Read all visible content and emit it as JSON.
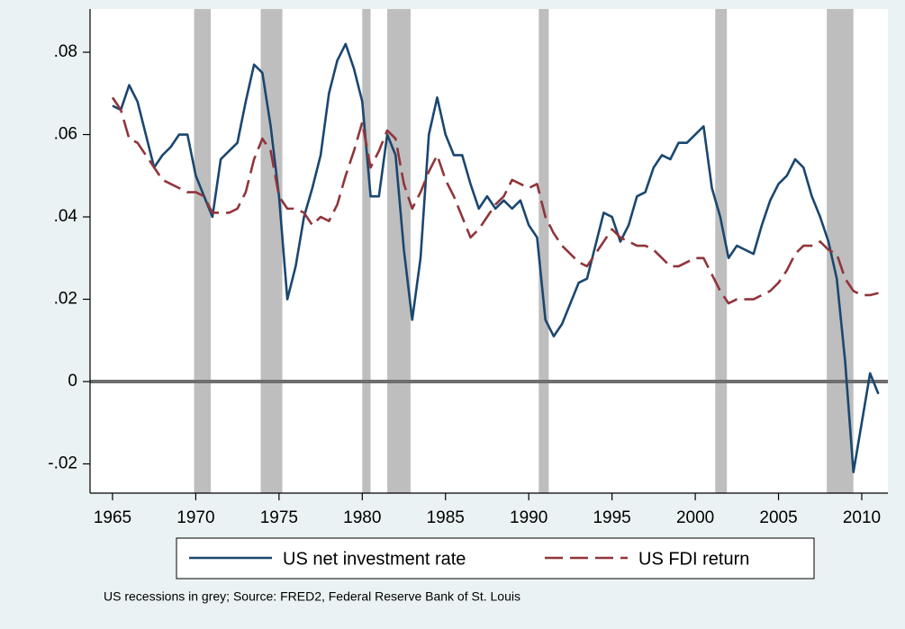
{
  "chart_data": {
    "type": "line",
    "note": "US recessions in grey; Source: FRED2, Federal Reserve Bank of St. Louis",
    "x": [
      1965,
      1965.5,
      1966,
      1966.5,
      1967,
      1967.5,
      1968,
      1968.5,
      1969,
      1969.5,
      1970,
      1970.5,
      1971,
      1971.5,
      1972,
      1972.5,
      1973,
      1973.5,
      1974,
      1974.5,
      1975,
      1975.5,
      1976,
      1976.5,
      1977,
      1977.5,
      1978,
      1978.5,
      1979,
      1979.5,
      1980,
      1980.5,
      1981,
      1981.5,
      1982,
      1982.5,
      1983,
      1983.5,
      1984,
      1984.5,
      1985,
      1985.5,
      1986,
      1986.5,
      1987,
      1987.5,
      1988,
      1988.5,
      1989,
      1989.5,
      1990,
      1990.5,
      1991,
      1991.5,
      1992,
      1992.5,
      1993,
      1993.5,
      1994,
      1994.5,
      1995,
      1995.5,
      1996,
      1996.5,
      1997,
      1997.5,
      1998,
      1998.5,
      1999,
      1999.5,
      2000,
      2000.5,
      2001,
      2001.5,
      2002,
      2002.5,
      2003,
      2003.5,
      2004,
      2004.5,
      2005,
      2005.5,
      2006,
      2006.5,
      2007,
      2007.5,
      2008,
      2008.5,
      2009,
      2009.5,
      2010,
      2010.5,
      2011
    ],
    "series": [
      {
        "name": "US net investment rate",
        "color": "#1a476f",
        "dashed": false,
        "values": [
          0.067,
          0.066,
          0.072,
          0.068,
          0.06,
          0.052,
          0.055,
          0.057,
          0.06,
          0.06,
          0.05,
          0.045,
          0.04,
          0.054,
          0.056,
          0.058,
          0.068,
          0.077,
          0.075,
          0.062,
          0.045,
          0.02,
          0.028,
          0.04,
          0.047,
          0.055,
          0.07,
          0.078,
          0.082,
          0.076,
          0.068,
          0.045,
          0.045,
          0.06,
          0.055,
          0.032,
          0.015,
          0.03,
          0.06,
          0.069,
          0.06,
          0.055,
          0.055,
          0.048,
          0.042,
          0.045,
          0.042,
          0.044,
          0.042,
          0.044,
          0.038,
          0.035,
          0.015,
          0.011,
          0.014,
          0.019,
          0.024,
          0.025,
          0.033,
          0.041,
          0.04,
          0.034,
          0.038,
          0.045,
          0.046,
          0.052,
          0.055,
          0.054,
          0.058,
          0.058,
          0.06,
          0.062,
          0.047,
          0.04,
          0.03,
          0.033,
          0.032,
          0.031,
          0.038,
          0.044,
          0.048,
          0.05,
          0.054,
          0.052,
          0.045,
          0.04,
          0.034,
          0.025,
          0.005,
          -0.022,
          -0.01,
          0.002,
          -0.003
        ]
      },
      {
        "name": "US FDI return",
        "color": "#90353b",
        "dashed": true,
        "values": [
          0.069,
          0.066,
          0.059,
          0.058,
          0.055,
          0.052,
          0.049,
          0.048,
          0.047,
          0.046,
          0.046,
          0.045,
          0.041,
          0.041,
          0.041,
          0.042,
          0.046,
          0.054,
          0.059,
          0.056,
          0.045,
          0.042,
          0.042,
          0.041,
          0.038,
          0.04,
          0.039,
          0.043,
          0.05,
          0.056,
          0.063,
          0.052,
          0.056,
          0.061,
          0.059,
          0.048,
          0.042,
          0.046,
          0.051,
          0.055,
          0.049,
          0.045,
          0.04,
          0.035,
          0.037,
          0.04,
          0.043,
          0.045,
          0.049,
          0.048,
          0.047,
          0.048,
          0.04,
          0.036,
          0.033,
          0.031,
          0.029,
          0.028,
          0.031,
          0.034,
          0.037,
          0.035,
          0.034,
          0.033,
          0.033,
          0.032,
          0.03,
          0.028,
          0.028,
          0.029,
          0.03,
          0.03,
          0.026,
          0.022,
          0.019,
          0.02,
          0.02,
          0.02,
          0.021,
          0.022,
          0.024,
          0.027,
          0.031,
          0.033,
          0.033,
          0.034,
          0.032,
          0.031,
          0.025,
          0.022,
          0.021,
          0.021,
          0.0215
        ]
      }
    ],
    "recessions": [
      [
        1969.9,
        1970.9
      ],
      [
        1973.9,
        1975.2
      ],
      [
        1980.0,
        1980.5
      ],
      [
        1981.5,
        1982.9
      ],
      [
        1990.6,
        1991.2
      ],
      [
        2001.2,
        2001.9
      ],
      [
        2007.9,
        2009.5
      ]
    ],
    "recession_color": "#bebebe",
    "xlim": [
      1963.65,
      2011.57
    ],
    "ylim": [
      -0.0271,
      0.0905
    ],
    "xticks": [
      1965,
      1970,
      1975,
      1980,
      1985,
      1990,
      1995,
      2000,
      2005,
      2010
    ],
    "yticks": [
      {
        "value": -0.02,
        "label": "-.02"
      },
      0,
      {
        "value": 0.02,
        "label": ".02"
      },
      {
        "value": 0.04,
        "label": ".04"
      },
      {
        "value": 0.06,
        "label": ".06"
      },
      {
        "value": 0.08,
        "label": ".08"
      }
    ],
    "grid": false
  }
}
